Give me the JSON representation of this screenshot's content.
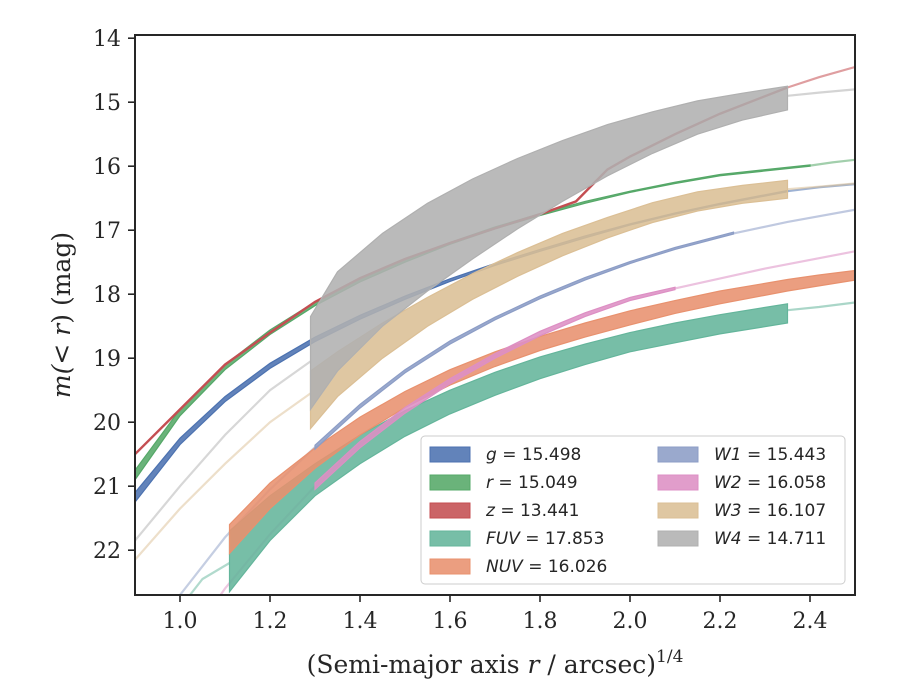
{
  "chart_data": {
    "type": "line",
    "xlabel": "(Semi-major axis r / arcsec)",
    "xlabel_var": "r",
    "xlabel_pre": "(Semi-major axis ",
    "xlabel_post": " / arcsec)",
    "xlabel_exp": "1/4",
    "ylabel_pre": "m(",
    "ylabel_var": "< r",
    "ylabel_post": ") (mag)",
    "xlim": [
      0.9,
      2.5
    ],
    "ylim": [
      22.7,
      13.95
    ],
    "y_inverted": true,
    "xticks": [
      "1.0",
      "1.2",
      "1.4",
      "1.6",
      "1.8",
      "2.0",
      "2.2",
      "2.4"
    ],
    "yticks": [
      "14",
      "15",
      "16",
      "17",
      "18",
      "19",
      "20",
      "21",
      "22"
    ],
    "grid": false,
    "legend_position": "lower-right",
    "series": [
      {
        "name": "g = 15.498",
        "band": "g",
        "total": "15.498",
        "color": "#4c72b0",
        "band_x": [
          0.9,
          1.0,
          1.1,
          1.2,
          1.3,
          1.4,
          1.5,
          1.6,
          1.7,
          1.8,
          1.9,
          2.0,
          2.1,
          2.2,
          2.35
        ],
        "band_lo": [
          21.25,
          20.35,
          19.68,
          19.16,
          18.74,
          18.39,
          18.08,
          17.8,
          17.55,
          17.33,
          17.12,
          16.92,
          16.75,
          16.6,
          16.4
        ],
        "band_hi": [
          21.1,
          20.25,
          19.6,
          19.08,
          18.67,
          18.33,
          18.03,
          17.76,
          17.52,
          17.3,
          17.09,
          16.9,
          16.73,
          16.58,
          16.38
        ],
        "ext_x": [
          2.35,
          2.42,
          2.5
        ],
        "ext_y": [
          16.39,
          16.33,
          16.28
        ]
      },
      {
        "name": "r = 15.049",
        "band": "r",
        "total": "15.049",
        "color": "#55a868",
        "band_x": [
          0.9,
          1.0,
          1.1,
          1.2,
          1.3,
          1.4,
          1.5,
          1.6,
          1.7,
          1.8,
          1.9,
          2.0,
          2.1,
          2.2,
          2.4
        ],
        "band_lo": [
          20.9,
          19.9,
          19.18,
          18.63,
          18.18,
          17.81,
          17.5,
          17.22,
          16.98,
          16.77,
          16.58,
          16.41,
          16.27,
          16.15,
          16.0
        ],
        "band_hi": [
          20.75,
          19.8,
          19.1,
          18.56,
          18.12,
          17.76,
          17.46,
          17.19,
          16.95,
          16.74,
          16.55,
          16.39,
          16.25,
          16.13,
          15.98
        ],
        "ext_x": [
          2.4,
          2.45,
          2.5
        ],
        "ext_y": [
          15.99,
          15.94,
          15.9
        ]
      },
      {
        "name": "z = 13.441",
        "band": "z",
        "total": "13.441",
        "color": "#c44e52",
        "line_x": [
          0.9,
          1.0,
          1.1,
          1.2,
          1.3,
          1.4,
          1.5,
          1.6,
          1.7,
          1.8,
          1.88,
          1.95,
          2.0,
          2.1,
          2.2,
          2.35
        ],
        "line_y": [
          20.5,
          19.8,
          19.1,
          18.6,
          18.12,
          17.75,
          17.45,
          17.2,
          16.97,
          16.75,
          16.55,
          16.05,
          15.85,
          15.5,
          15.18,
          14.77
        ],
        "ext_x": [
          2.35,
          2.42,
          2.5
        ],
        "ext_y": [
          14.77,
          14.61,
          14.45
        ]
      },
      {
        "name": "FUV = 17.853",
        "band": "FUV",
        "total": "17.853",
        "color": "#64b59b",
        "band_x": [
          1.11,
          1.2,
          1.3,
          1.4,
          1.5,
          1.6,
          1.7,
          1.8,
          1.9,
          2.0,
          2.1,
          2.2,
          2.35
        ],
        "band_lo": [
          22.65,
          21.85,
          21.15,
          20.65,
          20.22,
          19.87,
          19.58,
          19.32,
          19.1,
          18.9,
          18.76,
          18.62,
          18.45
        ],
        "band_hi": [
          21.7,
          21.15,
          20.65,
          20.2,
          19.82,
          19.5,
          19.22,
          18.98,
          18.78,
          18.6,
          18.45,
          18.32,
          18.15
        ],
        "fade_x": [
          0.9,
          0.95,
          1.0,
          1.05,
          1.11
        ],
        "fade_y": [
          24.2,
          23.5,
          22.9,
          22.45,
          22.2
        ],
        "ext_x": [
          2.35,
          2.42,
          2.5
        ],
        "ext_y": [
          18.25,
          18.2,
          18.13
        ]
      },
      {
        "name": "NUV = 16.026",
        "band": "NUV",
        "total": "16.026",
        "color": "#e8916e",
        "band_x": [
          1.11,
          1.2,
          1.3,
          1.4,
          1.5,
          1.6,
          1.7,
          1.8,
          1.9,
          2.0,
          2.1,
          2.2,
          2.35,
          2.42,
          2.5
        ],
        "band_lo": [
          22.05,
          21.35,
          20.72,
          20.2,
          19.77,
          19.42,
          19.13,
          18.88,
          18.67,
          18.48,
          18.3,
          18.15,
          17.95,
          17.87,
          17.78
        ],
        "band_hi": [
          21.6,
          20.95,
          20.4,
          19.92,
          19.52,
          19.18,
          18.9,
          18.66,
          18.45,
          18.26,
          18.1,
          17.95,
          17.77,
          17.7,
          17.63
        ]
      },
      {
        "name": "W1 = 15.443",
        "band": "W1",
        "total": "15.443",
        "color": "#8c9dc6",
        "band_x": [
          1.3,
          1.4,
          1.5,
          1.6,
          1.7,
          1.8,
          1.9,
          2.0,
          2.1,
          2.23
        ],
        "band_lo": [
          20.42,
          19.78,
          19.23,
          18.78,
          18.4,
          18.07,
          17.78,
          17.52,
          17.3,
          17.06
        ],
        "band_hi": [
          20.36,
          19.72,
          19.18,
          18.73,
          18.36,
          18.03,
          17.74,
          17.49,
          17.27,
          17.03
        ],
        "fade_x": [
          0.9,
          1.0,
          1.1,
          1.2,
          1.3
        ],
        "fade_y": [
          23.8,
          22.7,
          21.8,
          21.05,
          20.39
        ],
        "ext_x": [
          2.23,
          2.35,
          2.5
        ],
        "ext_y": [
          17.05,
          16.87,
          16.68
        ]
      },
      {
        "name": "W2 = 16.058",
        "band": "W2",
        "total": "16.058",
        "color": "#dd8fc4",
        "band_x": [
          1.3,
          1.4,
          1.5,
          1.6,
          1.7,
          1.8,
          1.9,
          2.0,
          2.1
        ],
        "band_lo": [
          21.05,
          20.4,
          19.86,
          19.4,
          19.0,
          18.65,
          18.35,
          18.1,
          17.93
        ],
        "band_hi": [
          20.95,
          20.3,
          19.77,
          19.32,
          18.93,
          18.58,
          18.29,
          18.05,
          17.89
        ],
        "fade_x": [
          0.9,
          1.0,
          1.1,
          1.2,
          1.3
        ],
        "fade_y": [
          24.8,
          23.6,
          22.6,
          21.75,
          21.0
        ],
        "ext_x": [
          2.1,
          2.3,
          2.5
        ],
        "ext_y": [
          17.91,
          17.6,
          17.33
        ]
      },
      {
        "name": "W3 = 16.107",
        "band": "W3",
        "total": "16.107",
        "color": "#dbbf95",
        "band_x": [
          1.29,
          1.35,
          1.45,
          1.55,
          1.65,
          1.75,
          1.85,
          1.95,
          2.05,
          2.15,
          2.25,
          2.35
        ],
        "band_lo": [
          20.1,
          19.6,
          19.0,
          18.5,
          18.08,
          17.72,
          17.4,
          17.12,
          16.88,
          16.7,
          16.58,
          16.5
        ],
        "band_hi": [
          19.2,
          18.9,
          18.45,
          18.05,
          17.68,
          17.35,
          17.05,
          16.8,
          16.57,
          16.4,
          16.3,
          16.22
        ],
        "fade_x": [
          0.9,
          1.0,
          1.1,
          1.2,
          1.29
        ],
        "fade_y": [
          22.15,
          21.35,
          20.65,
          20.0,
          19.55
        ],
        "ext_x": [
          2.35,
          2.42,
          2.5
        ],
        "ext_y": [
          16.36,
          16.32,
          16.27
        ]
      },
      {
        "name": "W4 = 14.711",
        "band": "W4",
        "total": "14.711",
        "color": "#b0b0b0",
        "band_x": [
          1.29,
          1.35,
          1.45,
          1.55,
          1.65,
          1.75,
          1.85,
          1.95,
          2.05,
          2.15,
          2.25,
          2.35
        ],
        "band_lo": [
          19.8,
          19.2,
          18.5,
          17.95,
          17.45,
          16.98,
          16.55,
          16.15,
          15.8,
          15.5,
          15.28,
          15.12
        ],
        "band_hi": [
          18.35,
          17.65,
          17.05,
          16.58,
          16.2,
          15.88,
          15.6,
          15.35,
          15.15,
          14.98,
          14.86,
          14.75
        ],
        "fade_x": [
          0.9,
          1.0,
          1.1,
          1.2,
          1.29
        ],
        "fade_y": [
          21.85,
          21.0,
          20.2,
          19.5,
          19.05
        ],
        "ext_x": [
          2.35,
          2.42,
          2.5
        ],
        "ext_y": [
          14.9,
          14.85,
          14.8
        ]
      }
    ]
  }
}
